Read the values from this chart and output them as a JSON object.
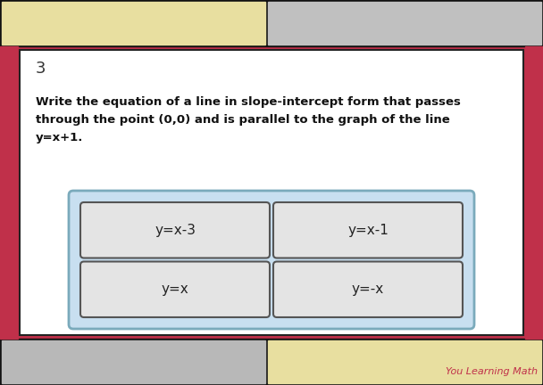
{
  "bg_outer": "#1a1a1a",
  "bg_red": "#c0304a",
  "bg_top_left": "#e8dfa0",
  "bg_top_right": "#c0c0c0",
  "bg_bottom_left": "#b8b8b8",
  "bg_bottom_right": "#e8dfa0",
  "card_bg": "#ffffff",
  "card_border": "#222222",
  "number": "3",
  "question_lines": [
    "Write the equation of a line in slope-intercept form that passes",
    "through the point (0,0) and is parallel to the graph of the line",
    "y=x+1."
  ],
  "answer_box_bg": "#c8dff0",
  "answer_box_border": "#7aaabb",
  "option_bg": "#e4e4e4",
  "option_border": "#555555",
  "options": [
    "y=x-3",
    "y=x-1",
    "y=x",
    "y=-x"
  ],
  "watermark": "You Learning Math",
  "watermark_color": "#c0304a",
  "fig_width": 6.08,
  "fig_height": 4.32,
  "dpi": 100
}
